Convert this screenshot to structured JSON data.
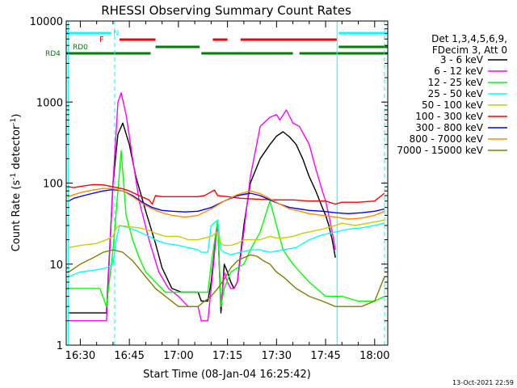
{
  "chart_data": {
    "type": "line",
    "title": "RHESSI Observing Summary Count Rates",
    "xlabel": "Start Time (08-Jan-04 16:25:42)",
    "ylabel_main": "Count Rate (s",
    "ylabel_sup1": "-1",
    "ylabel_mid": " detector",
    "ylabel_sup2": "-1",
    "ylabel_end": ")",
    "yscale": "log",
    "ylim": [
      1,
      10000
    ],
    "xlim_minutes": [
      25.7,
      124.0
    ],
    "yticks": [
      {
        "v": 1,
        "label": "1"
      },
      {
        "v": 10,
        "label": "10"
      },
      {
        "v": 100,
        "label": "100"
      },
      {
        "v": 1000,
        "label": "1000"
      },
      {
        "v": 10000,
        "label": "10000"
      }
    ],
    "xticks": [
      {
        "m": 30,
        "label": "16:30"
      },
      {
        "m": 45,
        "label": "16:45"
      },
      {
        "m": 60,
        "label": "17:00"
      },
      {
        "m": 75,
        "label": "17:15"
      },
      {
        "m": 90,
        "label": "17:30"
      },
      {
        "m": 105,
        "label": "17:45"
      },
      {
        "m": 120,
        "label": "18:00"
      }
    ],
    "timestamp": "13-Oct-2021 22:59",
    "legend_header": [
      "Det 1,3,4,5,6,9,",
      "FDecim 3, Att 0"
    ],
    "flag_labels": {
      "night": "N",
      "flare": "F",
      "rd0": "RD0",
      "rd4": "RD4"
    },
    "flags": {
      "night": {
        "color": "#00ffff",
        "segments": [
          [
            25.7,
            39.5
          ],
          [
            109.0,
            124.0
          ]
        ]
      },
      "flare": {
        "color": "#ff0000",
        "segments": [
          [
            42.0,
            53.0
          ],
          [
            70.5,
            75.0
          ],
          [
            79.0,
            108.5
          ]
        ]
      },
      "rd0": {
        "color": "#008000",
        "segments": [
          [
            53.0,
            66.5
          ],
          [
            109.0,
            124.0
          ]
        ]
      },
      "rd4": {
        "color": "#008000",
        "segments": [
          [
            25.7,
            51.5
          ],
          [
            67.0,
            95.0
          ],
          [
            97.0,
            124.0
          ]
        ]
      }
    },
    "vlines": [
      {
        "m": 26.3,
        "color": "#00ffff",
        "style": "solid"
      },
      {
        "m": 40.5,
        "color": "#00ffff",
        "style": "dashed"
      },
      {
        "m": 108.5,
        "color": "#00ffff",
        "style": "solid"
      },
      {
        "m": 123.0,
        "color": "#00ffff",
        "style": "dashed"
      }
    ],
    "series": [
      {
        "name": "3 - 6 keV",
        "color": "#000000",
        "x": [
          26.5,
          33,
          38,
          40,
          41.5,
          43,
          45,
          47,
          50,
          53,
          55,
          58,
          61,
          63,
          66,
          67,
          69,
          70,
          72,
          73,
          74,
          75,
          76,
          77,
          78,
          80,
          82,
          85,
          88,
          90,
          92,
          94,
          96,
          98,
          100,
          102,
          104,
          105,
          106,
          107,
          108
        ],
        "y": [
          2.5,
          2.5,
          2.5,
          100,
          400,
          550,
          300,
          120,
          45,
          18,
          9,
          5,
          4.5,
          4.5,
          4.5,
          3.5,
          3.5,
          6,
          35,
          2.5,
          10,
          8,
          6,
          5,
          6,
          30,
          100,
          200,
          300,
          380,
          430,
          370,
          300,
          200,
          120,
          80,
          50,
          40,
          30,
          20,
          12
        ]
      },
      {
        "name": "6 - 12 keV",
        "color": "#ff00ff",
        "x": [
          26.5,
          33,
          38,
          40,
          41.5,
          42.5,
          44,
          46,
          48,
          51,
          54,
          57,
          60,
          63,
          66,
          67,
          69,
          70,
          72,
          73,
          74,
          75,
          76,
          77,
          78,
          80,
          82,
          85,
          88,
          90,
          91,
          93,
          95,
          97,
          100,
          102,
          104,
          105,
          106,
          107,
          108
        ],
        "y": [
          2,
          2,
          2,
          100,
          1000,
          1300,
          700,
          200,
          60,
          20,
          8,
          5,
          4,
          3,
          3,
          2,
          2,
          5,
          35,
          3,
          8,
          6,
          5,
          5,
          6,
          25,
          120,
          500,
          650,
          700,
          600,
          800,
          550,
          500,
          300,
          150,
          80,
          60,
          40,
          25,
          15
        ]
      },
      {
        "name": "12 - 25 keV",
        "color": "#00ff00",
        "x": [
          26.5,
          36,
          38,
          40,
          41.5,
          42.5,
          44,
          46,
          48,
          50,
          53,
          56,
          60,
          65,
          69,
          70,
          72,
          73,
          74,
          76,
          78,
          80,
          82,
          85,
          88,
          90,
          92,
          95,
          100,
          105,
          108,
          110,
          115,
          120,
          123
        ],
        "y": [
          5,
          5,
          3,
          15,
          80,
          250,
          40,
          20,
          12,
          8,
          6,
          4.5,
          4.5,
          4.5,
          4.5,
          10,
          35,
          3,
          5,
          8,
          9,
          10,
          15,
          25,
          60,
          30,
          15,
          10,
          6,
          4,
          4,
          4,
          3.5,
          3.5,
          4
        ]
      },
      {
        "name": "25 - 50 keV",
        "color": "#00ffff",
        "x": [
          26.5,
          30,
          35,
          38,
          40,
          41,
          42,
          45,
          48,
          51,
          53,
          56,
          60,
          63,
          66,
          67,
          69,
          70,
          72,
          73,
          74,
          76,
          79,
          82,
          85,
          88,
          92,
          96,
          100,
          104,
          108,
          112,
          116,
          120,
          123
        ],
        "y": [
          7,
          8,
          8.5,
          9,
          10,
          20,
          30,
          28,
          25,
          22,
          20,
          18,
          17,
          16,
          15,
          14,
          14,
          30,
          35,
          15,
          14,
          13,
          14,
          15,
          15,
          14,
          15,
          16,
          20,
          23,
          25,
          27,
          28,
          30,
          32
        ]
      },
      {
        "name": "50 - 100 keV",
        "color": "#cccc00",
        "x": [
          26.5,
          30,
          35,
          38,
          40,
          41,
          42,
          45,
          48,
          51,
          53,
          56,
          60,
          63,
          66,
          68,
          70,
          72,
          73,
          74,
          76,
          78,
          80,
          82,
          85,
          88,
          90,
          92,
          95,
          98,
          100,
          104,
          108,
          110,
          114,
          118,
          123
        ],
        "y": [
          16,
          17,
          18,
          20,
          22,
          28,
          30,
          29,
          28,
          26,
          24,
          22,
          22,
          20,
          20,
          21,
          22,
          25,
          18,
          17,
          17,
          18,
          20,
          20,
          20,
          22,
          21,
          21,
          22,
          24,
          25,
          27,
          30,
          32,
          30,
          32,
          35
        ]
      },
      {
        "name": "100 - 300 keV",
        "color": "#ff0000",
        "x": [
          26.5,
          28,
          31,
          34,
          37,
          40,
          43,
          45,
          48,
          51,
          52,
          53,
          55,
          60,
          66,
          68,
          70,
          71,
          72,
          75,
          79,
          82,
          85,
          90,
          95,
          100,
          105,
          108,
          110,
          115,
          120,
          123
        ],
        "y": [
          90,
          88,
          92,
          96,
          95,
          90,
          85,
          80,
          70,
          62,
          55,
          70,
          68,
          68,
          68,
          70,
          78,
          82,
          70,
          68,
          65,
          64,
          63,
          62,
          62,
          60,
          60,
          55,
          58,
          58,
          60,
          75
        ]
      },
      {
        "name": "300 - 800 keV",
        "color": "#0000ff",
        "x": [
          26.5,
          28,
          31,
          34,
          37,
          40,
          43,
          46,
          49,
          52,
          55,
          58,
          62,
          66,
          70,
          74,
          78,
          82,
          85,
          88,
          91,
          94,
          97,
          100,
          104,
          108,
          112,
          116,
          120,
          123
        ],
        "y": [
          60,
          65,
          70,
          75,
          80,
          83,
          80,
          70,
          58,
          50,
          46,
          45,
          44,
          45,
          50,
          60,
          70,
          75,
          70,
          62,
          55,
          50,
          48,
          46,
          45,
          43,
          42,
          43,
          45,
          48
        ]
      },
      {
        "name": "800 - 7000 keV",
        "color": "#ff8c00",
        "x": [
          26.5,
          28,
          31,
          34,
          37,
          40,
          43,
          46,
          49,
          52,
          55,
          58,
          62,
          66,
          70,
          74,
          78,
          82,
          85,
          88,
          91,
          94,
          97,
          100,
          104,
          108,
          112,
          116,
          120,
          123
        ],
        "y": [
          68,
          72,
          78,
          82,
          86,
          85,
          80,
          68,
          56,
          48,
          43,
          40,
          38,
          40,
          48,
          60,
          72,
          80,
          74,
          64,
          55,
          48,
          45,
          42,
          40,
          38,
          36,
          37,
          40,
          45
        ]
      },
      {
        "name": "7000 - 15000 keV",
        "color": "#808000",
        "x": [
          26.5,
          30,
          34,
          37,
          40,
          43,
          46,
          50,
          53,
          56,
          60,
          64,
          66,
          68,
          70,
          72,
          74,
          76,
          78,
          80,
          82,
          84,
          86,
          88,
          90,
          92,
          96,
          100,
          104,
          108,
          112,
          116,
          120,
          123
        ],
        "y": [
          8,
          10,
          12,
          14,
          15,
          14,
          11,
          7,
          5,
          4,
          3,
          3,
          3,
          3.5,
          4,
          5,
          6.5,
          9,
          11,
          12,
          13,
          12.5,
          11,
          10,
          8,
          7,
          5,
          4,
          3.5,
          3,
          3,
          3,
          3.5,
          7
        ]
      }
    ]
  }
}
